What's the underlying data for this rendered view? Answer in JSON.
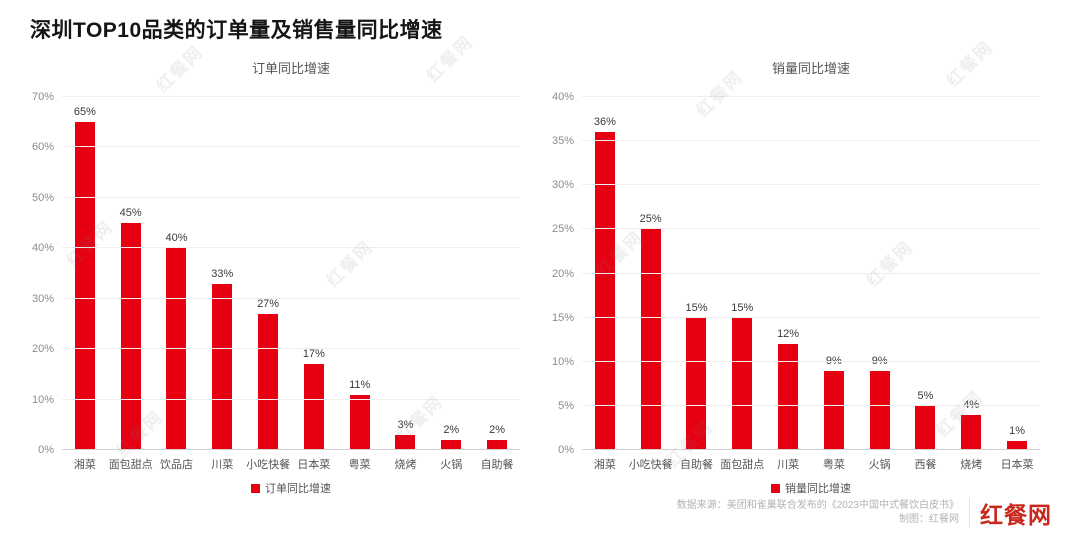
{
  "page": {
    "title": "深圳TOP10品类的订单量及销售量同比增速",
    "watermark_text": "红餐网"
  },
  "colors": {
    "bar_red": "#e60012",
    "logo_red": "#c8281d"
  },
  "chart_data": [
    {
      "type": "bar",
      "title": "订单同比增速",
      "legend": "订单同比增速",
      "categories": [
        "湘菜",
        "面包甜点",
        "饮品店",
        "川菜",
        "小吃快餐",
        "日本菜",
        "粤菜",
        "烧烤",
        "火锅",
        "自助餐"
      ],
      "values": [
        65,
        45,
        40,
        33,
        27,
        17,
        11,
        3,
        2,
        2
      ],
      "value_labels": [
        "65%",
        "45%",
        "40%",
        "33%",
        "27%",
        "17%",
        "11%",
        "3%",
        "2%",
        "2%"
      ],
      "xlabel": "",
      "ylabel": "",
      "ylim": [
        0,
        70
      ],
      "ytick_step": 10,
      "ytick_suffix": "%",
      "grid": true,
      "legend_position": "bottom",
      "bar_color": "#e60012"
    },
    {
      "type": "bar",
      "title": "销量同比增速",
      "legend": "销量同比增速",
      "categories": [
        "湘菜",
        "小吃快餐",
        "自助餐",
        "面包甜点",
        "川菜",
        "粤菜",
        "火锅",
        "西餐",
        "烧烤",
        "日本菜"
      ],
      "values": [
        36,
        25,
        15,
        15,
        12,
        9,
        9,
        5,
        4,
        1
      ],
      "value_labels": [
        "36%",
        "25%",
        "15%",
        "15%",
        "12%",
        "9%",
        "9%",
        "5%",
        "4%",
        "1%"
      ],
      "xlabel": "",
      "ylabel": "",
      "ylim": [
        0,
        40
      ],
      "ytick_step": 5,
      "ytick_suffix": "%",
      "grid": true,
      "legend_position": "bottom",
      "bar_color": "#e60012"
    }
  ],
  "footer": {
    "source_line1": "数据来源：美团和雀巢联合发布的《2023中国中式餐饮白皮书》",
    "source_line2": "制图：红餐网",
    "logo_text": "红餐网"
  }
}
